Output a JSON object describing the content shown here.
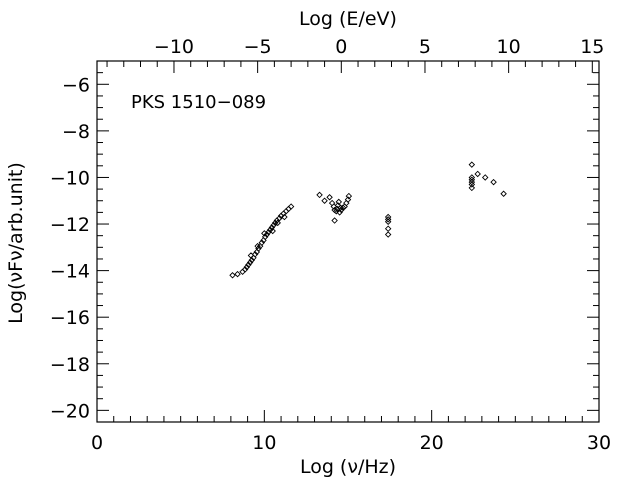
{
  "chart_data": {
    "type": "scatter",
    "title": "",
    "annotation": "PKS 1510−089",
    "xlabel": "Log (ν/Hz)",
    "ylabel": "Log(νFν/arb.unit)",
    "x2label": "Log (E/eV)",
    "xlim": [
      0,
      30
    ],
    "ylim": [
      -20.5,
      -5
    ],
    "x2lim": [
      -14.6,
      15.4
    ],
    "xticks": [
      0,
      10,
      20,
      30
    ],
    "xtick_labels": [
      "0",
      "10",
      "20",
      "30"
    ],
    "yticks": [
      -20,
      -18,
      -16,
      -14,
      -12,
      -10,
      -8,
      -6
    ],
    "ytick_labels": [
      "−20",
      "−18",
      "−16",
      "−14",
      "−12",
      "−10",
      "−8",
      "−6"
    ],
    "x2ticks": [
      -10,
      -5,
      0,
      5,
      10,
      15
    ],
    "x2tick_labels": [
      "−10",
      "−5",
      "0",
      "5",
      "10",
      "15"
    ],
    "grid": false,
    "marker": "diamond",
    "points": [
      [
        8.1,
        -14.2
      ],
      [
        8.4,
        -14.15
      ],
      [
        8.7,
        -14.05
      ],
      [
        8.85,
        -13.95
      ],
      [
        8.95,
        -13.85
      ],
      [
        9.05,
        -13.75
      ],
      [
        9.15,
        -13.65
      ],
      [
        9.25,
        -13.55
      ],
      [
        9.35,
        -13.45
      ],
      [
        9.45,
        -13.3
      ],
      [
        9.55,
        -13.2
      ],
      [
        9.65,
        -13.05
      ],
      [
        9.75,
        -12.95
      ],
      [
        9.85,
        -12.8
      ],
      [
        9.95,
        -12.7
      ],
      [
        10.05,
        -12.55
      ],
      [
        10.15,
        -12.45
      ],
      [
        10.25,
        -12.35
      ],
      [
        10.35,
        -12.25
      ],
      [
        10.45,
        -12.15
      ],
      [
        10.55,
        -12.05
      ],
      [
        10.65,
        -11.95
      ],
      [
        10.75,
        -11.85
      ],
      [
        10.9,
        -11.75
      ],
      [
        11.0,
        -11.65
      ],
      [
        11.15,
        -11.55
      ],
      [
        11.3,
        -11.45
      ],
      [
        11.45,
        -11.35
      ],
      [
        11.6,
        -11.25
      ],
      [
        9.2,
        -13.35
      ],
      [
        9.6,
        -12.95
      ],
      [
        10.0,
        -12.4
      ],
      [
        10.5,
        -12.3
      ],
      [
        10.8,
        -11.95
      ],
      [
        11.2,
        -11.7
      ],
      [
        13.3,
        -10.75
      ],
      [
        13.6,
        -11.0
      ],
      [
        13.9,
        -10.85
      ],
      [
        14.05,
        -11.1
      ],
      [
        14.15,
        -11.25
      ],
      [
        14.2,
        -11.4
      ],
      [
        14.3,
        -11.45
      ],
      [
        14.35,
        -11.35
      ],
      [
        14.4,
        -11.2
      ],
      [
        14.45,
        -11.05
      ],
      [
        14.5,
        -11.5
      ],
      [
        14.55,
        -11.3
      ],
      [
        14.6,
        -11.4
      ],
      [
        14.7,
        -11.3
      ],
      [
        14.8,
        -11.25
      ],
      [
        14.9,
        -11.1
      ],
      [
        15.0,
        -10.95
      ],
      [
        15.05,
        -10.8
      ],
      [
        14.2,
        -11.85
      ],
      [
        17.4,
        -11.7
      ],
      [
        17.4,
        -11.8
      ],
      [
        17.4,
        -11.9
      ],
      [
        17.4,
        -12.2
      ],
      [
        17.4,
        -12.45
      ],
      [
        22.4,
        -9.45
      ],
      [
        22.4,
        -10.0
      ],
      [
        22.4,
        -10.1
      ],
      [
        22.4,
        -10.2
      ],
      [
        22.4,
        -10.3
      ],
      [
        22.4,
        -10.45
      ],
      [
        22.75,
        -9.85
      ],
      [
        23.2,
        -10.0
      ],
      [
        23.7,
        -10.2
      ],
      [
        24.3,
        -10.7
      ]
    ]
  }
}
